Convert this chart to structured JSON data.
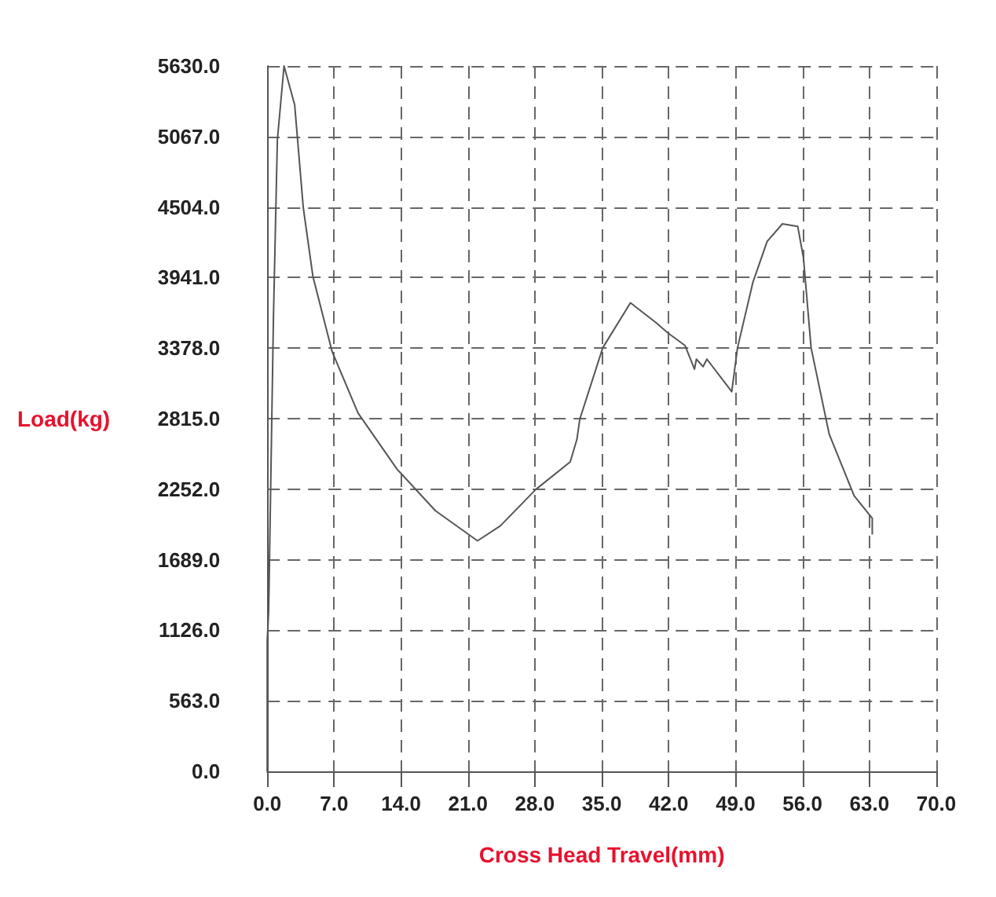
{
  "chart_data": {
    "type": "line",
    "xlabel": "Cross Head Travel(mm)",
    "ylabel": "Load(kg)",
    "series": [
      {
        "color": "#555555",
        "x": [
          0,
          0,
          0.15,
          0.65,
          1.06,
          1.76,
          2.87,
          3.77,
          4.78,
          6.79,
          9.5,
          13.6,
          17.6,
          22.0,
          24.4,
          28.1,
          31.7,
          32.4,
          32.7,
          35.1,
          38.0,
          40.7,
          41.9,
          43.7,
          44.7,
          44.9,
          45.6,
          46.0,
          48.6,
          49.2,
          50.8,
          52.3,
          53.9,
          55.5,
          56.1,
          56.9,
          58.8,
          61.4,
          63.3,
          63.3
        ],
        "values": [
          0,
          1040,
          1280,
          3620,
          5040,
          5630,
          5320,
          4500,
          3950,
          3350,
          2860,
          2410,
          2080,
          1840,
          1960,
          2250,
          2470,
          2650,
          2810,
          3380,
          3740,
          3580,
          3500,
          3400,
          3210,
          3290,
          3230,
          3290,
          3030,
          3380,
          3900,
          4230,
          4370,
          4350,
          4100,
          3380,
          2690,
          2200,
          2020,
          1890
        ]
      }
    ],
    "xlim": [
      0,
      70
    ],
    "xticks": [
      {
        "value": 0,
        "label": "0.0"
      },
      {
        "value": 7,
        "label": "7.0"
      },
      {
        "value": 14,
        "label": "14.0"
      },
      {
        "value": 21,
        "label": "21.0"
      },
      {
        "value": 28,
        "label": "28.0"
      },
      {
        "value": 35,
        "label": "35.0"
      },
      {
        "value": 42,
        "label": "42.0"
      },
      {
        "value": 49,
        "label": "49.0"
      },
      {
        "value": 56,
        "label": "56.0"
      },
      {
        "value": 63,
        "label": "63.0"
      },
      {
        "value": 70,
        "label": "70.0"
      }
    ],
    "ylim": [
      0,
      5630
    ],
    "yticks": [
      {
        "value": 0,
        "label": "0.0"
      },
      {
        "value": 563,
        "label": "563.0"
      },
      {
        "value": 1126,
        "label": "1126.0"
      },
      {
        "value": 1689,
        "label": "1689.0"
      },
      {
        "value": 2252,
        "label": "2252.0"
      },
      {
        "value": 2815,
        "label": "2815.0"
      },
      {
        "value": 3378,
        "label": "3378.0"
      },
      {
        "value": 3941,
        "label": "3941.0"
      },
      {
        "value": 4504,
        "label": "4504.0"
      },
      {
        "value": 5067,
        "label": "5067.0"
      },
      {
        "value": 5630,
        "label": "5630.0"
      }
    ],
    "grid": true,
    "marker": "none",
    "line_style": "solid"
  }
}
